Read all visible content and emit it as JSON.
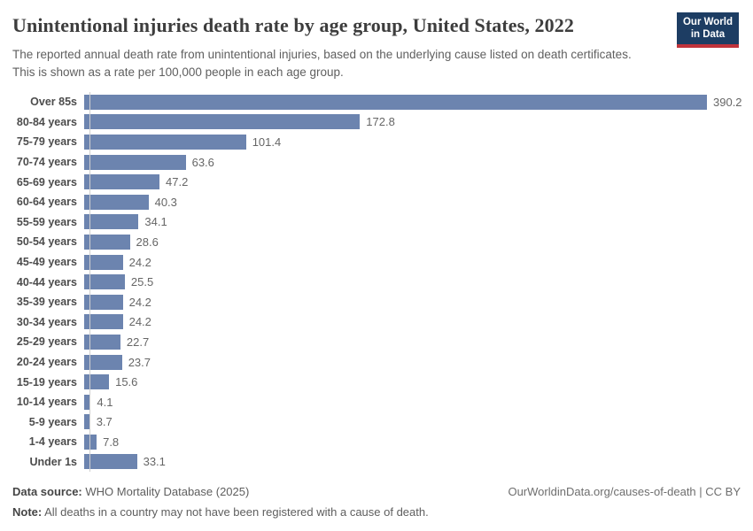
{
  "header": {
    "title": "Unintentional injuries death rate by age group, United States, 2022",
    "subtitle": "The reported annual death rate from unintentional injuries, based on the underlying cause listed on death certificates. This is shown as a rate per 100,000 people in each age group.",
    "logo": {
      "line1": "Our World",
      "line2": "in Data"
    }
  },
  "chart_data": {
    "type": "bar",
    "orientation": "horizontal",
    "title": "Unintentional injuries death rate by age group, United States, 2022",
    "categories": [
      "Over 85s",
      "80-84 years",
      "75-79 years",
      "70-74 years",
      "65-69 years",
      "60-64 years",
      "55-59 years",
      "50-54 years",
      "45-49 years",
      "40-44 years",
      "35-39 years",
      "30-34 years",
      "25-29 years",
      "20-24 years",
      "15-19 years",
      "10-14 years",
      "5-9 years",
      "1-4 years",
      "Under 1s"
    ],
    "values": [
      390.2,
      172.8,
      101.4,
      63.6,
      47.2,
      40.3,
      34.1,
      28.6,
      24.2,
      25.5,
      24.2,
      24.2,
      22.7,
      23.7,
      15.6,
      4.1,
      3.7,
      7.8,
      33.1
    ],
    "xlabel": "",
    "ylabel": "",
    "xlim": [
      0,
      390.2
    ],
    "grid": false,
    "legend": "none",
    "value_labels_shown": true,
    "bar_color": "#6c84af"
  },
  "footer": {
    "source_label": "Data source:",
    "source_text": "WHO Mortality Database (2025)",
    "note_label": "Note:",
    "note_text": "All deaths in a country may not have been registered with a cause of death.",
    "link": "OurWorldinData.org/causes-of-death | CC BY"
  },
  "colors": {
    "bar": "#6c84af",
    "logo_navy": "#1d3d63",
    "logo_red": "#c0333b",
    "title_text": "#3d3d3d",
    "body_text": "#5f5f5f",
    "axis_line": "#d0d0d0"
  }
}
